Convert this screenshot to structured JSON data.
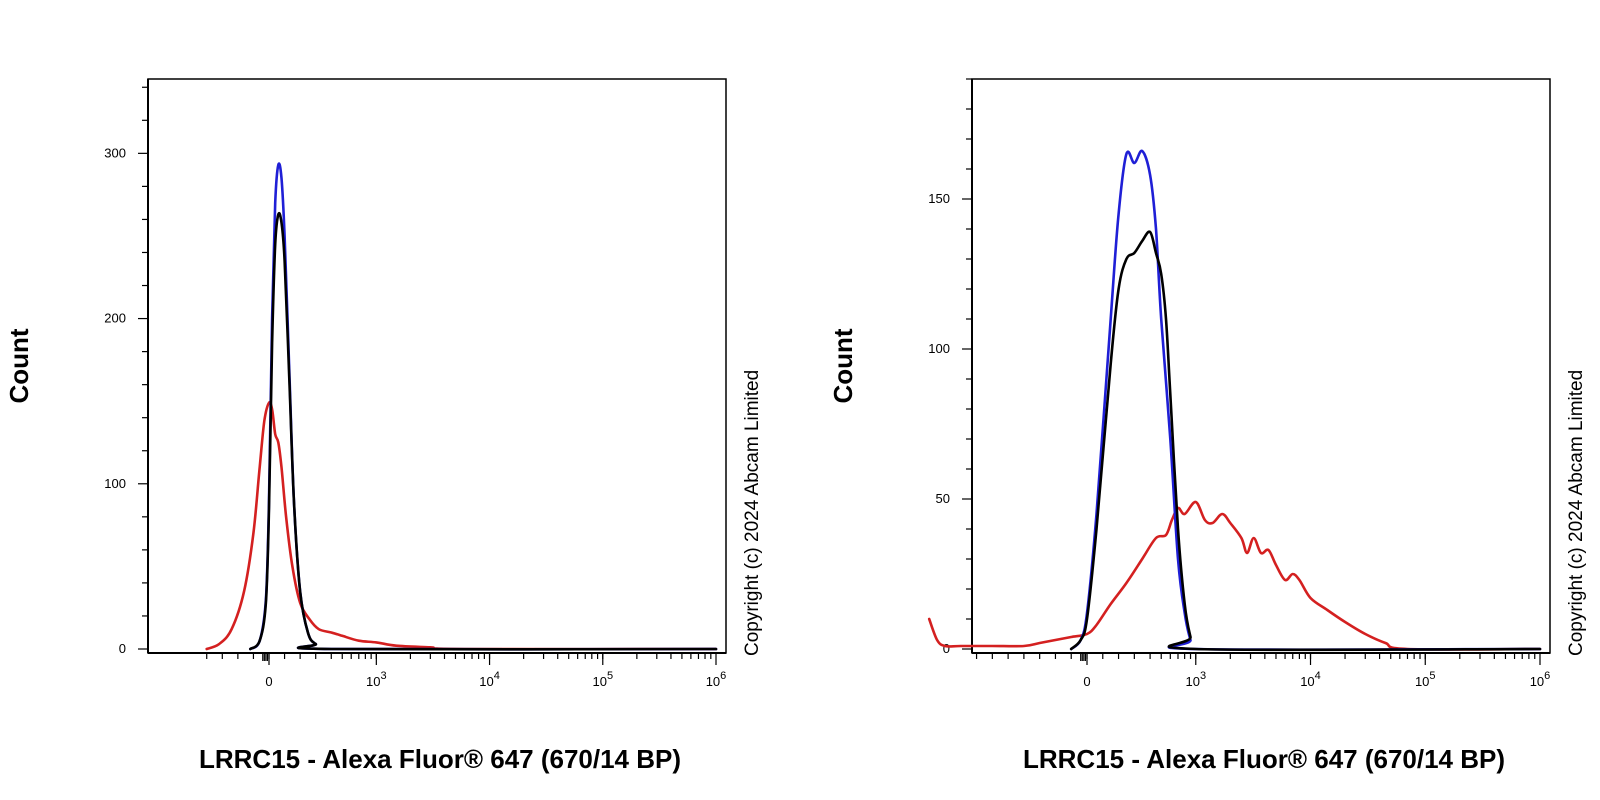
{
  "colors": {
    "blue": "#1f1fd6",
    "black": "#000000",
    "red": "#d42020"
  },
  "chart_data": [
    {
      "type": "line",
      "x_scale": "biexponential",
      "xlabel": "LRRC15 - Alexa Fluor® 647 (670/14 BP)",
      "ylabel": "Count",
      "copyright": "Copyright (c) 2024 Abcam Limited",
      "ylim": [
        0,
        345
      ],
      "xlim": [
        -400,
        1000000
      ],
      "y_ticks": [
        0,
        100,
        200,
        300
      ],
      "x_ticks": [
        0,
        1000,
        10000,
        100000,
        1000000
      ],
      "x_tick_labels": [
        {
          "base": "0",
          "exp": ""
        },
        {
          "base": "10",
          "exp": "3"
        },
        {
          "base": "10",
          "exp": "4"
        },
        {
          "base": "10",
          "exp": "5"
        },
        {
          "base": "10",
          "exp": "6"
        }
      ],
      "series": [
        {
          "color": "blue",
          "points": [
            [
              -120,
              0
            ],
            [
              -60,
              5
            ],
            [
              -20,
              30
            ],
            [
              0,
              90
            ],
            [
              20,
              200
            ],
            [
              40,
              270
            ],
            [
              60,
              293
            ],
            [
              80,
              285
            ],
            [
              100,
              250
            ],
            [
              130,
              170
            ],
            [
              160,
              90
            ],
            [
              200,
              35
            ],
            [
              250,
              10
            ],
            [
              300,
              3
            ],
            [
              400,
              0
            ],
            [
              1000000,
              0
            ]
          ]
        },
        {
          "color": "black",
          "points": [
            [
              -120,
              0
            ],
            [
              -60,
              5
            ],
            [
              -20,
              28
            ],
            [
              0,
              85
            ],
            [
              20,
              185
            ],
            [
              40,
              245
            ],
            [
              60,
              263
            ],
            [
              80,
              258
            ],
            [
              100,
              235
            ],
            [
              130,
              165
            ],
            [
              160,
              90
            ],
            [
              200,
              35
            ],
            [
              250,
              10
            ],
            [
              300,
              3
            ],
            [
              400,
              0
            ],
            [
              1000000,
              0
            ]
          ]
        },
        {
          "color": "red",
          "points": [
            [
              -400,
              0
            ],
            [
              -320,
              3
            ],
            [
              -240,
              12
            ],
            [
              -160,
              35
            ],
            [
              -100,
              70
            ],
            [
              -60,
              110
            ],
            [
              -30,
              138
            ],
            [
              0,
              149
            ],
            [
              20,
              145
            ],
            [
              40,
              130
            ],
            [
              60,
              125
            ],
            [
              80,
              110
            ],
            [
              110,
              80
            ],
            [
              150,
              50
            ],
            [
              200,
              28
            ],
            [
              260,
              18
            ],
            [
              320,
              12
            ],
            [
              400,
              10
            ],
            [
              500,
              8
            ],
            [
              700,
              5
            ],
            [
              1000,
              4
            ],
            [
              1500,
              2
            ],
            [
              3000,
              1
            ],
            [
              6000,
              0
            ],
            [
              1000000,
              0
            ]
          ]
        }
      ]
    },
    {
      "type": "line",
      "x_scale": "biexponential",
      "xlabel": "LRRC15 - Alexa Fluor® 647 (670/14 BP)",
      "ylabel": "Count",
      "copyright": "Copyright (c) 2024 Abcam Limited",
      "ylim": [
        0,
        190
      ],
      "xlim": [
        -1000,
        1000000
      ],
      "y_ticks": [
        0,
        50,
        100,
        150
      ],
      "x_ticks": [
        0,
        1000,
        10000,
        100000,
        1000000
      ],
      "x_tick_labels": [
        {
          "base": "0",
          "exp": ""
        },
        {
          "base": "10",
          "exp": "3"
        },
        {
          "base": "10",
          "exp": "4"
        },
        {
          "base": "10",
          "exp": "5"
        },
        {
          "base": "10",
          "exp": "6"
        }
      ],
      "series": [
        {
          "color": "blue",
          "points": [
            [
              -100,
              0
            ],
            [
              -40,
              3
            ],
            [
              0,
              12
            ],
            [
              60,
              45
            ],
            [
              150,
              110
            ],
            [
              200,
              145
            ],
            [
              250,
              165
            ],
            [
              300,
              162
            ],
            [
              350,
              166
            ],
            [
              400,
              158
            ],
            [
              450,
              140
            ],
            [
              500,
              110
            ],
            [
              600,
              70
            ],
            [
              700,
              30
            ],
            [
              800,
              12
            ],
            [
              900,
              3
            ],
            [
              1000,
              0
            ],
            [
              1000000,
              0
            ]
          ]
        },
        {
          "color": "black",
          "points": [
            [
              -100,
              0
            ],
            [
              -40,
              3
            ],
            [
              0,
              10
            ],
            [
              60,
              40
            ],
            [
              150,
              95
            ],
            [
              200,
              120
            ],
            [
              250,
              130
            ],
            [
              300,
              132
            ],
            [
              350,
              136
            ],
            [
              400,
              139
            ],
            [
              450,
              132
            ],
            [
              500,
              125
            ],
            [
              550,
              110
            ],
            [
              600,
              85
            ],
            [
              700,
              40
            ],
            [
              800,
              15
            ],
            [
              900,
              4
            ],
            [
              1000,
              0
            ],
            [
              1000000,
              0
            ]
          ]
        },
        {
          "color": "red",
          "points": [
            [
              -1000,
              10
            ],
            [
              -950,
              3
            ],
            [
              -900,
              1
            ],
            [
              -800,
              1
            ],
            [
              -600,
              1
            ],
            [
              -400,
              1
            ],
            [
              -300,
              2
            ],
            [
              -200,
              3
            ],
            [
              -100,
              4
            ],
            [
              0,
              5
            ],
            [
              60,
              8
            ],
            [
              150,
              15
            ],
            [
              250,
              22
            ],
            [
              350,
              30
            ],
            [
              450,
              37
            ],
            [
              550,
              38
            ],
            [
              620,
              43
            ],
            [
              700,
              47
            ],
            [
              800,
              45
            ],
            [
              1000,
              49
            ],
            [
              1200,
              43
            ],
            [
              1400,
              42
            ],
            [
              1700,
              45
            ],
            [
              2000,
              42
            ],
            [
              2500,
              37
            ],
            [
              2800,
              32
            ],
            [
              3200,
              37
            ],
            [
              3700,
              32
            ],
            [
              4300,
              33
            ],
            [
              5000,
              28
            ],
            [
              6000,
              23
            ],
            [
              7000,
              25
            ],
            [
              8000,
              23
            ],
            [
              10000,
              17
            ],
            [
              14000,
              13
            ],
            [
              20000,
              9
            ],
            [
              30000,
              5
            ],
            [
              45000,
              2
            ],
            [
              70000,
              0
            ],
            [
              1000000,
              0
            ]
          ]
        }
      ]
    }
  ]
}
